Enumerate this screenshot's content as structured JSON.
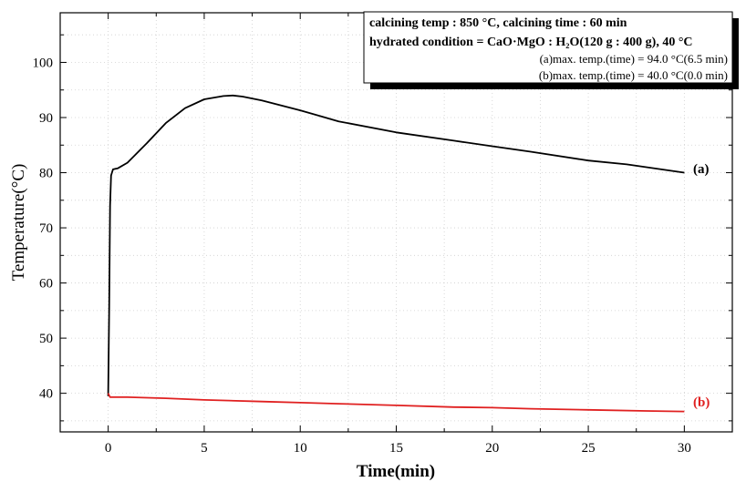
{
  "chart_data": {
    "type": "line",
    "xlabel": "Time(min)",
    "ylabel": "Temperature(°C)",
    "xlim": [
      -2.5,
      32.5
    ],
    "ylim": [
      33,
      109
    ],
    "xticks": [
      0,
      5,
      10,
      15,
      20,
      25,
      30
    ],
    "yticks": [
      40,
      50,
      60,
      70,
      80,
      90,
      100
    ],
    "grid": true,
    "info_box": {
      "line1": "calcining temp : 850 °C, calcining time : 60 min",
      "line2": "hydrated condition = CaO·MgO : H₂O(120 g : 400 g), 40 °C",
      "line3": "(a)max. temp.(time) = 94.0 °C(6.5 min)",
      "line4": "(b)max. temp.(time) = 40.0 °C(0.0 min)"
    },
    "series": [
      {
        "name": "(a)",
        "color": "#000000",
        "x": [
          0,
          0.05,
          0.1,
          0.15,
          0.25,
          0.5,
          1,
          2,
          3,
          4,
          5,
          6,
          6.5,
          7,
          8,
          10,
          12,
          15,
          18,
          20,
          22,
          25,
          27,
          30
        ],
        "y": [
          39.5,
          55,
          74,
          79.5,
          80.6,
          80.8,
          81.8,
          85.3,
          89,
          91.7,
          93.3,
          93.9,
          94.0,
          93.8,
          93.1,
          91.3,
          89.3,
          87.3,
          85.8,
          84.8,
          83.8,
          82.2,
          81.5,
          80.0
        ]
      },
      {
        "name": "(b)",
        "color": "#e02020",
        "x": [
          0,
          0.1,
          1,
          3,
          5,
          8,
          10,
          12,
          15,
          18,
          20,
          22,
          25,
          28,
          30
        ],
        "y": [
          40.0,
          39.3,
          39.3,
          39.1,
          38.8,
          38.5,
          38.3,
          38.1,
          37.8,
          37.5,
          37.4,
          37.2,
          37.0,
          36.8,
          36.7
        ]
      }
    ]
  }
}
